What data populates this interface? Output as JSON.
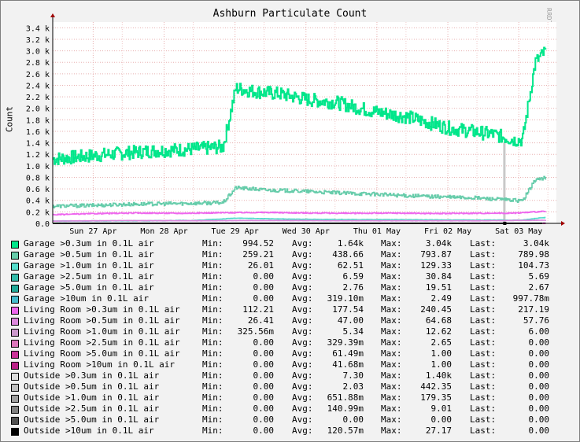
{
  "chart_data": {
    "type": "line",
    "title": "Ashburn Particulate Count",
    "ylabel": "Count",
    "vendor": "RRDTOOL / TOBI OETIKER",
    "ylim": [
      0,
      3500
    ],
    "yticks": [
      0,
      200,
      400,
      600,
      800,
      1000,
      1200,
      1400,
      1600,
      1800,
      2000,
      2200,
      2400,
      2600,
      2800,
      3000,
      3200,
      3400
    ],
    "ytick_labels": [
      "0.0",
      "0.2 k",
      "0.4 k",
      "0.6 k",
      "0.8 k",
      "1.0 k",
      "1.2 k",
      "1.4 k",
      "1.6 k",
      "1.8 k",
      "2.0 k",
      "2.2 k",
      "2.4 k",
      "2.6 k",
      "2.8 k",
      "3.0 k",
      "3.2 k",
      "3.4 k"
    ],
    "xlim": [
      0,
      7.1
    ],
    "xticks": [
      0.57,
      1.57,
      2.57,
      3.57,
      4.57,
      5.57,
      6.57
    ],
    "xtick_labels": [
      "Sun 27 Apr",
      "Mon 28 Apr",
      "Tue 29 Apr",
      "Wed 30 Apr",
      "Thu 01 May",
      "Fri 02 May",
      "Sat 03 May"
    ],
    "grid": true,
    "series": [
      {
        "name": "Garage >0.3um in 0.1L air",
        "color": "#00e68a",
        "points": [
          [
            0,
            1120
          ],
          [
            0.3,
            1150
          ],
          [
            0.6,
            1180
          ],
          [
            1.0,
            1220
          ],
          [
            1.4,
            1260
          ],
          [
            1.8,
            1280
          ],
          [
            2.1,
            1300
          ],
          [
            2.4,
            1330
          ],
          [
            2.58,
            2350
          ],
          [
            2.8,
            2300
          ],
          [
            3.2,
            2250
          ],
          [
            3.6,
            2150
          ],
          [
            4.0,
            2100
          ],
          [
            4.5,
            1950
          ],
          [
            5.0,
            1850
          ],
          [
            5.3,
            1750
          ],
          [
            5.6,
            1650
          ],
          [
            5.9,
            1600
          ],
          [
            6.2,
            1550
          ],
          [
            6.5,
            1450
          ],
          [
            6.62,
            1450
          ],
          [
            6.8,
            2800
          ],
          [
            6.95,
            3000
          ]
        ]
      },
      {
        "name": "Garage >0.5um in 0.1L air",
        "color": "#66ccaa",
        "points": [
          [
            0,
            300
          ],
          [
            0.5,
            310
          ],
          [
            1.0,
            330
          ],
          [
            1.5,
            340
          ],
          [
            2.0,
            350
          ],
          [
            2.4,
            360
          ],
          [
            2.58,
            620
          ],
          [
            3.0,
            580
          ],
          [
            3.5,
            560
          ],
          [
            4.0,
            530
          ],
          [
            4.5,
            510
          ],
          [
            5.0,
            480
          ],
          [
            5.5,
            460
          ],
          [
            6.0,
            440
          ],
          [
            6.5,
            400
          ],
          [
            6.62,
            390
          ],
          [
            6.8,
            760
          ],
          [
            6.95,
            790
          ]
        ]
      },
      {
        "name": "Garage >1.0um in 0.1L air",
        "color": "#55ddcc",
        "points": [
          [
            0,
            40
          ],
          [
            1.0,
            45
          ],
          [
            2.0,
            50
          ],
          [
            2.58,
            90
          ],
          [
            3.5,
            70
          ],
          [
            4.5,
            65
          ],
          [
            5.5,
            60
          ],
          [
            6.6,
            55
          ],
          [
            6.95,
            105
          ]
        ]
      },
      {
        "name": "Garage >2.5um in 0.1L air",
        "color": "#33bbaa",
        "points": [
          [
            0,
            5
          ],
          [
            3.0,
            8
          ],
          [
            6.95,
            6
          ]
        ]
      },
      {
        "name": "Garage >5.0um in 0.1L air",
        "color": "#22aa99",
        "points": [
          [
            0,
            2
          ],
          [
            6.95,
            3
          ]
        ]
      },
      {
        "name": "Garage >10um in 0.1L air",
        "color": "#44bbcc",
        "points": [
          [
            0,
            0.3
          ],
          [
            6.95,
            1
          ]
        ]
      },
      {
        "name": "Living Room >0.3um in 0.1L air",
        "color": "#ee66ee",
        "points": [
          [
            0,
            150
          ],
          [
            0.6,
            170
          ],
          [
            1.2,
            180
          ],
          [
            1.8,
            175
          ],
          [
            2.4,
            185
          ],
          [
            3.0,
            190
          ],
          [
            3.6,
            180
          ],
          [
            4.2,
            175
          ],
          [
            4.8,
            178
          ],
          [
            5.4,
            172
          ],
          [
            6.0,
            176
          ],
          [
            6.5,
            178
          ],
          [
            6.95,
            210
          ]
        ]
      },
      {
        "name": "Living Room >0.5um in 0.1L air",
        "color": "#dd88dd",
        "points": [
          [
            0,
            40
          ],
          [
            1.0,
            48
          ],
          [
            2.0,
            46
          ],
          [
            3.0,
            50
          ],
          [
            4.0,
            47
          ],
          [
            5.0,
            46
          ],
          [
            6.0,
            45
          ],
          [
            6.95,
            55
          ]
        ]
      },
      {
        "name": "Living Room >1.0um in 0.1L air",
        "color": "#cc99cc",
        "points": [
          [
            0,
            4
          ],
          [
            3.0,
            6
          ],
          [
            6.95,
            6
          ]
        ]
      },
      {
        "name": "Living Room >2.5um in 0.1L air",
        "color": "#dd77bb",
        "points": [
          [
            0,
            0.3
          ],
          [
            6.95,
            0.3
          ]
        ]
      },
      {
        "name": "Living Room >5.0um in 0.1L air",
        "color": "#cc3399",
        "points": [
          [
            0,
            0.1
          ],
          [
            6.95,
            0.1
          ]
        ]
      },
      {
        "name": "Living Room >10um in 0.1L air",
        "color": "#bb2288",
        "points": [
          [
            0,
            0.05
          ],
          [
            6.95,
            0.05
          ]
        ]
      },
      {
        "name": "Outside >0.3um in 0.1L air",
        "color": "#dddddd",
        "points": [
          [
            0,
            5
          ],
          [
            3.0,
            6
          ],
          [
            6.0,
            8
          ],
          [
            6.9,
            6
          ]
        ]
      },
      {
        "name": "Outside >0.5um in 0.1L air",
        "color": "#c0c0c0",
        "points": [
          [
            0,
            2
          ],
          [
            3.0,
            2
          ],
          [
            6.0,
            2
          ],
          [
            6.9,
            2
          ]
        ]
      },
      {
        "name": "Outside >1.0um in 0.1L air",
        "color": "#a0a0a0",
        "points": [
          [
            0,
            0.5
          ],
          [
            6.9,
            0.5
          ]
        ]
      },
      {
        "name": "Outside >2.5um in 0.1L air",
        "color": "#808080",
        "points": [
          [
            0,
            0.1
          ],
          [
            6.9,
            0.1
          ]
        ]
      },
      {
        "name": "Outside >5.0um in 0.1L air",
        "color": "#505050",
        "points": [
          [
            0,
            0
          ],
          [
            6.9,
            0
          ]
        ]
      },
      {
        "name": "Outside >10um in 0.1L air",
        "color": "#000000",
        "points": [
          [
            0,
            0.1
          ],
          [
            6.9,
            0.1
          ]
        ]
      }
    ],
    "spikes": [
      {
        "x": 6.35,
        "y": 1400,
        "color": "#c8c8c8"
      }
    ]
  },
  "legend": {
    "min_label": "Min:",
    "avg_label": "Avg:",
    "max_label": "Max:",
    "last_label": "Last:",
    "rows": [
      {
        "name": "Garage >0.3um in 0.1L air",
        "color": "#00e68a",
        "min": "994.52",
        "avg": "1.64k",
        "max": "3.04k",
        "last": "3.04k"
      },
      {
        "name": "Garage >0.5um in 0.1L air",
        "color": "#66ccaa",
        "min": "259.21",
        "avg": "438.66",
        "max": "793.87",
        "last": "789.98"
      },
      {
        "name": "Garage >1.0um in 0.1L air",
        "color": "#55ddcc",
        "min": "26.01",
        "avg": "62.51",
        "max": "129.33",
        "last": "104.73"
      },
      {
        "name": "Garage >2.5um in 0.1L air",
        "color": "#33bbaa",
        "min": "0.00",
        "avg": "6.59",
        "max": "30.84",
        "last": "5.69"
      },
      {
        "name": "Garage >5.0um in 0.1L air",
        "color": "#22aa99",
        "min": "0.00",
        "avg": "2.76",
        "max": "19.51",
        "last": "2.67"
      },
      {
        "name": "Garage >10um in 0.1L air",
        "color": "#44bbcc",
        "min": "0.00",
        "avg": "319.10m",
        "max": "2.49",
        "last": "997.78m"
      },
      {
        "name": "Living Room >0.3um in 0.1L air",
        "color": "#ee66ee",
        "min": "112.21",
        "avg": "177.54",
        "max": "240.45",
        "last": "217.19"
      },
      {
        "name": "Living Room >0.5um in 0.1L air",
        "color": "#dd88dd",
        "min": "26.41",
        "avg": "47.00",
        "max": "64.68",
        "last": "57.76"
      },
      {
        "name": "Living Room >1.0um in 0.1L air",
        "color": "#cc99cc",
        "min": "325.56m",
        "avg": "5.34",
        "max": "12.62",
        "last": "6.00"
      },
      {
        "name": "Living Room >2.5um in 0.1L air",
        "color": "#dd77bb",
        "min": "0.00",
        "avg": "329.39m",
        "max": "2.65",
        "last": "0.00"
      },
      {
        "name": "Living Room >5.0um in 0.1L air",
        "color": "#cc3399",
        "min": "0.00",
        "avg": "61.49m",
        "max": "1.00",
        "last": "0.00"
      },
      {
        "name": "Living Room >10um in 0.1L air",
        "color": "#bb2288",
        "min": "0.00",
        "avg": "41.68m",
        "max": "1.00",
        "last": "0.00"
      },
      {
        "name": "Outside >0.3um in 0.1L air",
        "color": "#dddddd",
        "min": "0.00",
        "avg": "7.30",
        "max": "1.40k",
        "last": "0.00"
      },
      {
        "name": "Outside >0.5um in 0.1L air",
        "color": "#c0c0c0",
        "min": "0.00",
        "avg": "2.03",
        "max": "442.35",
        "last": "0.00"
      },
      {
        "name": "Outside >1.0um in 0.1L air",
        "color": "#a0a0a0",
        "min": "0.00",
        "avg": "651.88m",
        "max": "179.35",
        "last": "0.00"
      },
      {
        "name": "Outside >2.5um in 0.1L air",
        "color": "#808080",
        "min": "0.00",
        "avg": "140.99m",
        "max": "9.01",
        "last": "0.00"
      },
      {
        "name": "Outside >5.0um in 0.1L air",
        "color": "#505050",
        "min": "0.00",
        "avg": "0.00",
        "max": "0.00",
        "last": "0.00"
      },
      {
        "name": "Outside >10um in 0.1L air",
        "color": "#000000",
        "min": "0.00",
        "avg": "120.57m",
        "max": "27.17",
        "last": "0.00"
      }
    ]
  }
}
